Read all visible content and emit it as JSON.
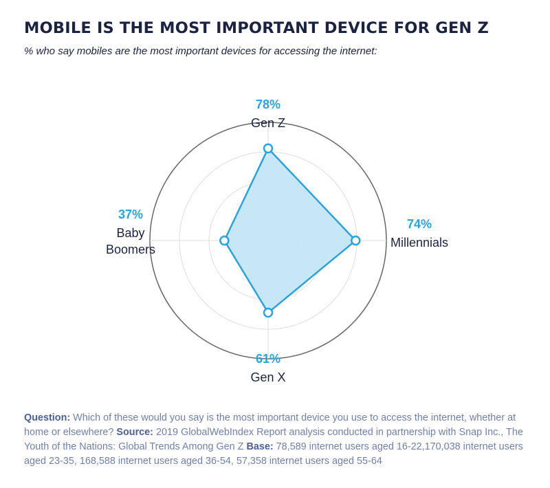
{
  "header": {
    "title": "MOBILE IS THE MOST IMPORTANT DEVICE FOR GEN Z",
    "subtitle": "% who say mobiles are the most important devices for accessing the internet:"
  },
  "chart_data": {
    "type": "radar",
    "title": "MOBILE IS THE MOST IMPORTANT DEVICE FOR GEN Z",
    "categories": [
      "Gen Z",
      "Millennials",
      "Gen X",
      "Baby Boomers"
    ],
    "values": [
      78,
      74,
      61,
      37
    ],
    "value_labels": [
      "78%",
      "74%",
      "61%",
      "37%"
    ],
    "category_label_lines": [
      [
        "Gen Z"
      ],
      [
        "Millennials"
      ],
      [
        "Gen X"
      ],
      [
        "Baby",
        "Boomers"
      ]
    ],
    "rlim": [
      0,
      100
    ],
    "grid_levels": 4,
    "colors": {
      "fill": "#c2e4f5",
      "line": "#29a2dd",
      "label": "#29a2dd",
      "outer_ring": "#666666",
      "grid": "#dddddd"
    }
  },
  "footer": {
    "question_label": "Question:",
    "question_text": "Which of these would you say is the most important device you use to access the internet, whether at home or elsewhere?",
    "source_label": "Source:",
    "source_text": "2019 GlobalWebIndex Report analysis conducted in partnership with Snap Inc., The Youth of the Nations: Global Trends Among Gen Z",
    "base_label": "Base:",
    "base_text": "78,589 internet users aged 16-22,170,038 internet users aged 23-35, 168,588 internet users aged 36-54, 57,358 internet users aged 55-64"
  }
}
